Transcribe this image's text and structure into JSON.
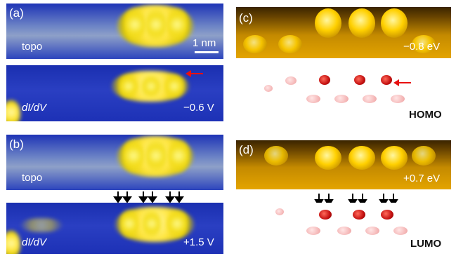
{
  "figure": {
    "panel_a": {
      "tag": "(a)",
      "topo_label": "topo",
      "scale_label": "1 nm",
      "didv_label": "dI/dV",
      "didv_bias": "−0.6 V"
    },
    "panel_b": {
      "tag": "(b)",
      "topo_label": "topo",
      "didv_label": "dI/dV",
      "didv_bias": "+1.5 V"
    },
    "panel_c": {
      "tag": "(c)",
      "energy": "−0.8 eV",
      "orbital": "HOMO"
    },
    "panel_d": {
      "tag": "(d)",
      "energy": "+0.7 eV",
      "orbital": "LUMO"
    }
  },
  "colors": {
    "stm_background": "#1d31b6",
    "feature_yellow": "#ffe640",
    "marker_red": "#e81010",
    "marker_black": "#000000"
  }
}
